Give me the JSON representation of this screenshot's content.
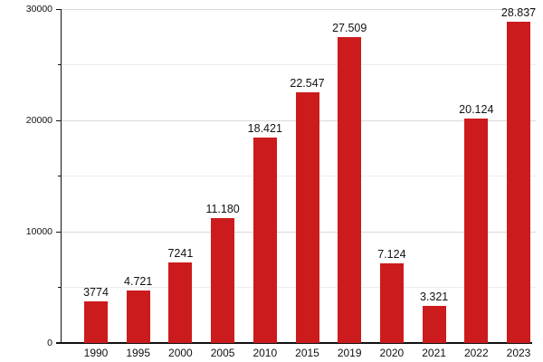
{
  "chart_data": {
    "type": "bar",
    "title": "",
    "xlabel": "",
    "ylabel": "",
    "categories": [
      "1990",
      "1995",
      "2000",
      "2005",
      "2010",
      "2015",
      "2019",
      "2020",
      "2021",
      "2022",
      "2023"
    ],
    "values": [
      3774,
      4721,
      7241,
      11180,
      18421,
      22547,
      27509,
      7124,
      3321,
      20124,
      28837
    ],
    "value_labels": [
      "3774",
      "4.721",
      "7241",
      "11.180",
      "18.421",
      "22.547",
      "27.509",
      "7.124",
      "3.321",
      "20.124",
      "28.837"
    ],
    "y_axis": {
      "min": 0,
      "max": 30000,
      "major_tick": 10000,
      "minor_tick": 5000,
      "ticks": [
        {
          "value": 0,
          "label": "0"
        },
        {
          "value": 10000,
          "label": "10000"
        },
        {
          "value": 20000,
          "label": "20000"
        },
        {
          "value": 30000,
          "label": "30000"
        }
      ]
    },
    "grid": true,
    "legend": null,
    "colors": {
      "bar": "#cc1b1c",
      "axis": "#111111",
      "grid_major": "#d9d9d9",
      "grid_minor": "#ececec",
      "background": "#ffffff",
      "text": "#111111"
    }
  }
}
